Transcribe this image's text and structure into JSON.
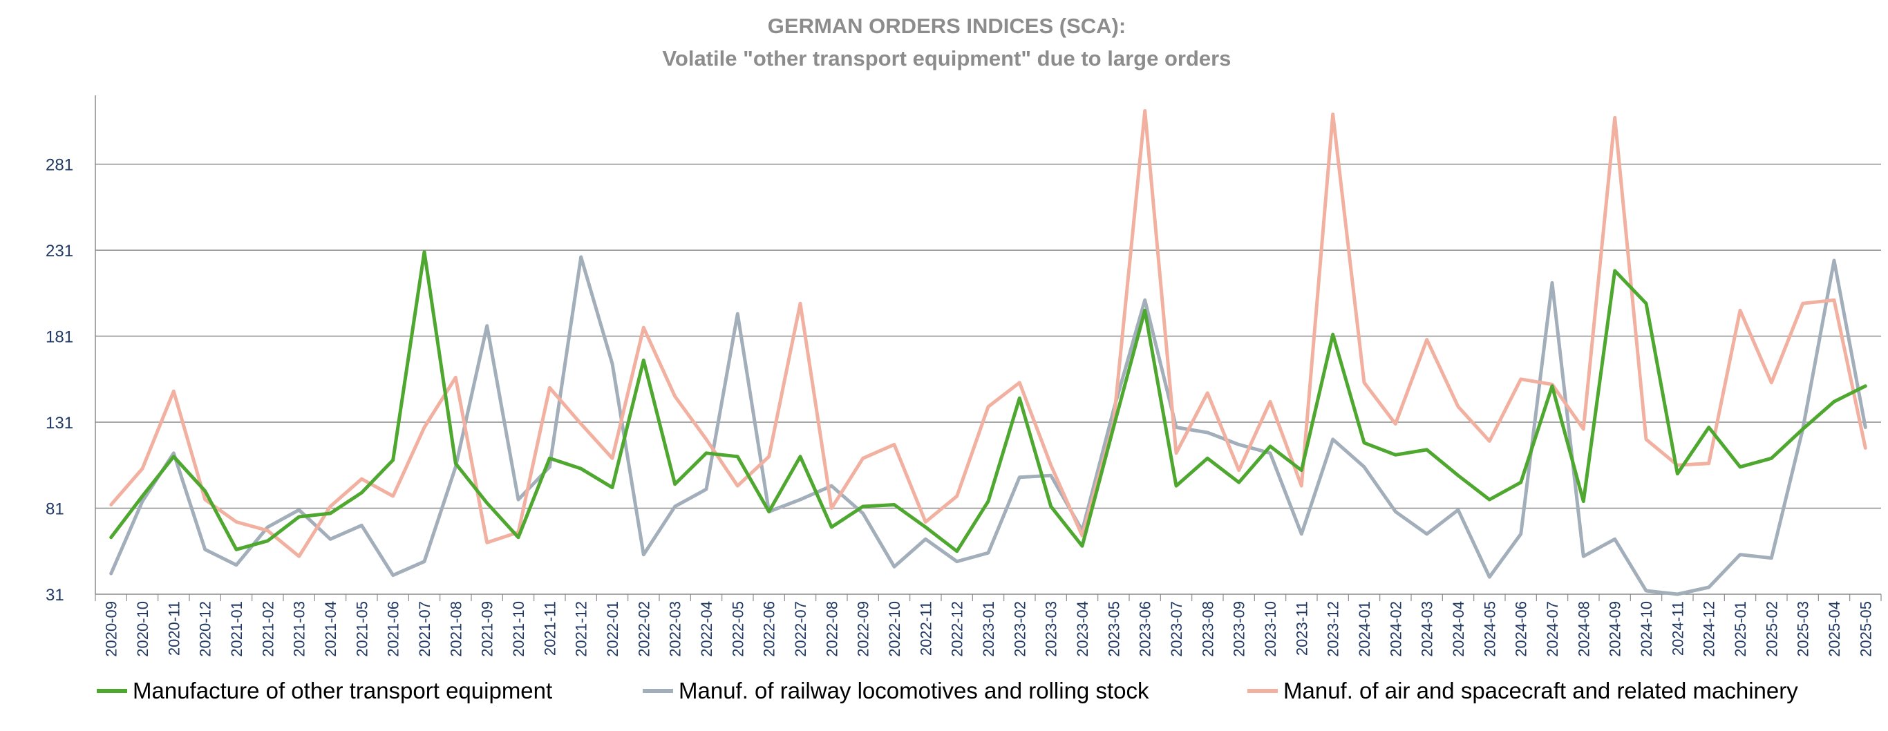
{
  "chart_data": {
    "type": "line",
    "title": "GERMAN ORDERS INDICES (SCA):",
    "subtitle": "Volatile \"other transport equipment\" due to large orders",
    "xlabel": "",
    "ylabel": "",
    "ylim": [
      31,
      321
    ],
    "yticks": [
      31,
      81,
      131,
      181,
      231,
      281
    ],
    "grid": true,
    "legend_position": "bottom",
    "categories": [
      "2020-09",
      "2020-10",
      "2020-11",
      "2020-12",
      "2021-01",
      "2021-02",
      "2021-03",
      "2021-04",
      "2021-05",
      "2021-06",
      "2021-07",
      "2021-08",
      "2021-09",
      "2021-10",
      "2021-11",
      "2021-12",
      "2022-01",
      "2022-02",
      "2022-03",
      "2022-04",
      "2022-05",
      "2022-06",
      "2022-07",
      "2022-08",
      "2022-09",
      "2022-10",
      "2022-11",
      "2022-12",
      "2023-01",
      "2023-02",
      "2023-03",
      "2023-04",
      "2023-05",
      "2023-06",
      "2023-07",
      "2023-08",
      "2023-09",
      "2023-10",
      "2023-11",
      "2023-12",
      "2024-01",
      "2024-02",
      "2024-03",
      "2024-04",
      "2024-05",
      "2024-06",
      "2024-07",
      "2024-08",
      "2024-09",
      "2024-10",
      "2024-11",
      "2024-12",
      "2025-01",
      "2025-02",
      "2025-03",
      "2025-04",
      "2025-05"
    ],
    "series": [
      {
        "name": "Manufacture of other transport equipment",
        "color": "#4ea72e",
        "values": [
          64,
          88,
          111,
          91,
          57,
          62,
          76,
          78,
          90,
          109,
          230,
          107,
          84,
          64,
          110,
          104,
          93,
          167,
          95,
          113,
          111,
          79,
          111,
          70,
          82,
          83,
          70,
          56,
          85,
          145,
          82,
          59,
          128,
          196,
          94,
          110,
          96,
          117,
          103,
          182,
          119,
          112,
          115,
          100,
          86,
          96,
          152,
          85,
          219,
          200,
          101,
          128,
          105,
          110,
          127,
          143,
          152
        ]
      },
      {
        "name": "Manuf. of railway locomotives and rolling stock",
        "color": "#a2aeba",
        "values": [
          43,
          85,
          113,
          57,
          48,
          70,
          80,
          63,
          71,
          42,
          50,
          105,
          187,
          86,
          105,
          227,
          165,
          54,
          82,
          92,
          194,
          79,
          86,
          94,
          78,
          47,
          63,
          50,
          55,
          99,
          100,
          68,
          138,
          202,
          128,
          125,
          118,
          113,
          66,
          121,
          105,
          79,
          66,
          80,
          41,
          66,
          212,
          53,
          63,
          33,
          31,
          35,
          54,
          52,
          127,
          225,
          128
        ]
      },
      {
        "name": "Manuf. of air and spacecraft and related machinery",
        "color": "#f2b0a0",
        "values": [
          83,
          104,
          149,
          86,
          73,
          68,
          53,
          82,
          98,
          88,
          128,
          157,
          61,
          67,
          151,
          130,
          110,
          186,
          146,
          121,
          94,
          111,
          200,
          81,
          110,
          118,
          73,
          88,
          140,
          154,
          106,
          65,
          130,
          312,
          113,
          148,
          103,
          143,
          94,
          310,
          154,
          130,
          179,
          140,
          120,
          156,
          153,
          127,
          308,
          121,
          106,
          107,
          196,
          154,
          200,
          202,
          116
        ]
      }
    ]
  }
}
